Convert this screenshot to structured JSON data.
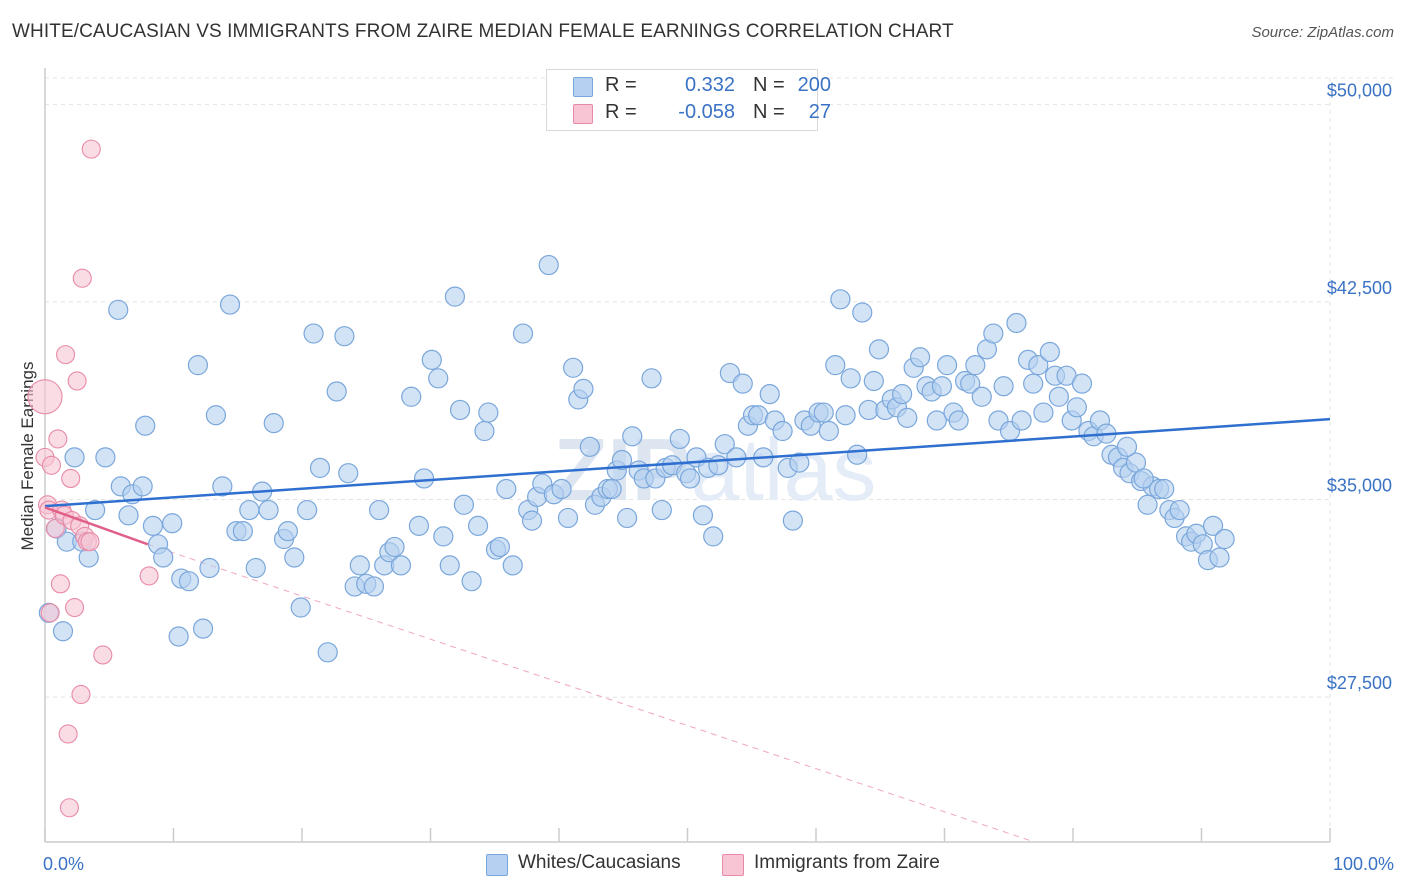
{
  "title": "WHITE/CAUCASIAN VS IMMIGRANTS FROM ZAIRE MEDIAN FEMALE EARNINGS CORRELATION CHART",
  "source": "Source: ZipAtlas.com",
  "watermark": {
    "zip": "ZIP",
    "atlas": "atlas"
  },
  "legend": {
    "r_label": "R =",
    "n_label": "N =",
    "blue": {
      "r": "0.332",
      "n": "200"
    },
    "pink": {
      "r": "-0.058",
      "n": "27"
    }
  },
  "bottom_legend": {
    "blue": "Whites/Caucasians",
    "pink": "Immigrants from Zaire"
  },
  "colors": {
    "blue_fill": "#b5d0f0",
    "blue_stroke": "#7aa7db",
    "blue_line": "#2f6fd0",
    "pink_fill": "#f7c5d3",
    "pink_stroke": "#e88aa6",
    "pink_line": "#e0608a",
    "axis_text": "#3a72c4"
  },
  "chart_data": {
    "type": "scatter",
    "title": "WHITE/CAUCASIAN VS IMMIGRANTS FROM ZAIRE MEDIAN FEMALE EARNINGS CORRELATION CHART",
    "xlabel": "",
    "ylabel": "Median Female Earnings",
    "xlim": [
      0,
      100
    ],
    "ylim": [
      22000,
      51000
    ],
    "x_tick_labels": {
      "left": "0.0%",
      "right": "100.0%"
    },
    "y_ticks": [
      {
        "value": 27500,
        "label": "$27,500"
      },
      {
        "value": 35000,
        "label": "$35,000"
      },
      {
        "value": 42500,
        "label": "$42,500"
      },
      {
        "value": 50000,
        "label": "$50,000"
      }
    ],
    "grid": true,
    "series": [
      {
        "name": "Whites/Caucasians",
        "color": "blue",
        "trend": {
          "x": [
            0,
            100
          ],
          "y": [
            34750,
            38050
          ]
        },
        "points": [
          [
            0.3,
            30.7
          ],
          [
            0.9,
            33.9
          ],
          [
            1.4,
            30.0
          ],
          [
            1.7,
            33.4
          ],
          [
            2.3,
            36.6
          ],
          [
            2.9,
            33.4
          ],
          [
            3.4,
            32.8
          ],
          [
            3.9,
            34.6
          ],
          [
            4.7,
            36.6
          ],
          [
            5.7,
            42.2
          ],
          [
            5.9,
            35.5
          ],
          [
            6.5,
            34.4
          ],
          [
            6.8,
            35.2
          ],
          [
            7.6,
            35.5
          ],
          [
            7.8,
            37.8
          ],
          [
            8.4,
            34.0
          ],
          [
            8.8,
            33.3
          ],
          [
            9.2,
            32.8
          ],
          [
            9.9,
            34.1
          ],
          [
            10.4,
            29.8
          ],
          [
            10.6,
            32.0
          ],
          [
            11.2,
            31.9
          ],
          [
            11.9,
            40.1
          ],
          [
            12.3,
            30.1
          ],
          [
            12.8,
            32.4
          ],
          [
            13.3,
            38.2
          ],
          [
            13.8,
            35.5
          ],
          [
            14.4,
            42.4
          ],
          [
            14.9,
            33.8
          ],
          [
            15.4,
            33.8
          ],
          [
            15.9,
            34.6
          ],
          [
            16.4,
            32.4
          ],
          [
            16.9,
            35.3
          ],
          [
            17.4,
            34.6
          ],
          [
            17.8,
            37.9
          ],
          [
            18.6,
            33.5
          ],
          [
            18.9,
            33.8
          ],
          [
            19.4,
            32.8
          ],
          [
            19.9,
            30.9
          ],
          [
            20.4,
            34.6
          ],
          [
            20.9,
            41.3
          ],
          [
            21.4,
            36.2
          ],
          [
            22.0,
            29.2
          ],
          [
            22.7,
            39.1
          ],
          [
            23.3,
            41.2
          ],
          [
            23.6,
            36.0
          ],
          [
            24.1,
            31.7
          ],
          [
            24.5,
            32.5
          ],
          [
            25.0,
            31.8
          ],
          [
            25.6,
            31.7
          ],
          [
            26.0,
            34.6
          ],
          [
            26.4,
            32.5
          ],
          [
            26.8,
            33.0
          ],
          [
            27.2,
            33.2
          ],
          [
            27.7,
            32.5
          ],
          [
            28.5,
            38.9
          ],
          [
            29.1,
            34.0
          ],
          [
            29.5,
            35.8
          ],
          [
            30.1,
            40.3
          ],
          [
            30.6,
            39.6
          ],
          [
            31.0,
            33.6
          ],
          [
            31.5,
            32.5
          ],
          [
            31.9,
            42.7
          ],
          [
            32.3,
            38.4
          ],
          [
            32.6,
            34.8
          ],
          [
            33.2,
            31.9
          ],
          [
            33.7,
            34.0
          ],
          [
            34.2,
            37.6
          ],
          [
            34.5,
            38.3
          ],
          [
            35.1,
            33.1
          ],
          [
            35.4,
            33.2
          ],
          [
            35.9,
            35.4
          ],
          [
            36.4,
            32.5
          ],
          [
            37.2,
            41.3
          ],
          [
            37.6,
            34.6
          ],
          [
            37.9,
            34.2
          ],
          [
            38.3,
            35.1
          ],
          [
            38.7,
            35.6
          ],
          [
            39.2,
            43.9
          ],
          [
            39.6,
            35.2
          ],
          [
            40.2,
            35.4
          ],
          [
            40.7,
            34.3
          ],
          [
            41.1,
            40.0
          ],
          [
            41.5,
            38.8
          ],
          [
            41.9,
            39.2
          ],
          [
            42.4,
            37.0
          ],
          [
            42.8,
            34.8
          ],
          [
            43.3,
            35.1
          ],
          [
            43.8,
            35.4
          ],
          [
            44.1,
            35.4
          ],
          [
            44.5,
            36.1
          ],
          [
            44.9,
            36.5
          ],
          [
            45.3,
            34.3
          ],
          [
            45.7,
            37.4
          ],
          [
            46.2,
            36.1
          ],
          [
            46.6,
            35.8
          ],
          [
            47.2,
            39.6
          ],
          [
            47.5,
            35.8
          ],
          [
            48.0,
            34.6
          ],
          [
            48.3,
            36.2
          ],
          [
            48.8,
            36.3
          ],
          [
            49.4,
            37.3
          ],
          [
            49.9,
            36.0
          ],
          [
            50.2,
            35.8
          ],
          [
            50.7,
            36.6
          ],
          [
            51.2,
            34.4
          ],
          [
            51.6,
            36.2
          ],
          [
            52.0,
            33.6
          ],
          [
            52.4,
            36.3
          ],
          [
            52.9,
            37.1
          ],
          [
            53.3,
            39.8
          ],
          [
            53.8,
            36.6
          ],
          [
            54.3,
            39.4
          ],
          [
            54.7,
            37.8
          ],
          [
            55.1,
            38.2
          ],
          [
            55.5,
            38.2
          ],
          [
            55.9,
            36.6
          ],
          [
            56.4,
            39.0
          ],
          [
            56.8,
            38.0
          ],
          [
            57.4,
            37.6
          ],
          [
            57.8,
            36.2
          ],
          [
            58.2,
            34.2
          ],
          [
            58.7,
            36.4
          ],
          [
            59.1,
            38.0
          ],
          [
            59.6,
            37.8
          ],
          [
            60.2,
            38.3
          ],
          [
            60.6,
            38.3
          ],
          [
            61.0,
            37.6
          ],
          [
            61.5,
            40.1
          ],
          [
            61.9,
            42.6
          ],
          [
            62.3,
            38.2
          ],
          [
            62.7,
            39.6
          ],
          [
            63.2,
            36.7
          ],
          [
            63.6,
            42.1
          ],
          [
            64.1,
            38.4
          ],
          [
            64.5,
            39.5
          ],
          [
            64.9,
            40.7
          ],
          [
            65.4,
            38.4
          ],
          [
            65.9,
            38.8
          ],
          [
            66.3,
            38.5
          ],
          [
            66.7,
            39.0
          ],
          [
            67.1,
            38.1
          ],
          [
            67.6,
            40.0
          ],
          [
            68.1,
            40.4
          ],
          [
            68.6,
            39.3
          ],
          [
            69.0,
            39.1
          ],
          [
            69.4,
            38.0
          ],
          [
            69.8,
            39.3
          ],
          [
            70.2,
            40.1
          ],
          [
            70.7,
            38.3
          ],
          [
            71.1,
            38.0
          ],
          [
            71.6,
            39.5
          ],
          [
            72.0,
            39.4
          ],
          [
            72.4,
            40.1
          ],
          [
            72.9,
            38.9
          ],
          [
            73.3,
            40.7
          ],
          [
            73.8,
            41.3
          ],
          [
            74.2,
            38.0
          ],
          [
            74.6,
            39.3
          ],
          [
            75.1,
            37.6
          ],
          [
            75.6,
            41.7
          ],
          [
            76.0,
            38.0
          ],
          [
            76.5,
            40.3
          ],
          [
            76.9,
            39.4
          ],
          [
            77.3,
            40.1
          ],
          [
            77.7,
            38.3
          ],
          [
            78.2,
            40.6
          ],
          [
            78.6,
            39.7
          ],
          [
            78.9,
            38.9
          ],
          [
            79.5,
            39.7
          ],
          [
            79.9,
            38.0
          ],
          [
            80.3,
            38.5
          ],
          [
            80.7,
            39.4
          ],
          [
            81.2,
            37.6
          ],
          [
            81.6,
            37.4
          ],
          [
            82.1,
            38.0
          ],
          [
            82.6,
            37.5
          ],
          [
            83.0,
            36.7
          ],
          [
            83.5,
            36.6
          ],
          [
            83.9,
            36.2
          ],
          [
            84.4,
            36.0
          ],
          [
            84.9,
            36.4
          ],
          [
            85.3,
            35.7
          ],
          [
            85.8,
            34.8
          ],
          [
            86.2,
            35.5
          ],
          [
            86.7,
            35.4
          ],
          [
            87.1,
            35.4
          ],
          [
            87.5,
            34.6
          ],
          [
            87.9,
            34.3
          ],
          [
            88.3,
            34.6
          ],
          [
            88.8,
            33.6
          ],
          [
            89.2,
            33.4
          ],
          [
            89.6,
            33.7
          ],
          [
            90.1,
            33.3
          ],
          [
            90.5,
            32.7
          ],
          [
            90.9,
            34.0
          ],
          [
            91.4,
            32.8
          ],
          [
            91.8,
            33.5
          ],
          [
            85.5,
            35.8
          ],
          [
            84.2,
            37.0
          ]
        ]
      },
      {
        "name": "Immigrants from Zaire",
        "color": "pink",
        "trend": {
          "x": [
            0,
            8.0
          ],
          "y": [
            34700,
            33300
          ]
        },
        "trend_extended": {
          "x": [
            8.0,
            77.0
          ],
          "y": [
            33300,
            22000
          ]
        },
        "points": [
          [
            0.0,
            38.9
          ],
          [
            0.0,
            36.6
          ],
          [
            0.2,
            34.8
          ],
          [
            0.3,
            34.6
          ],
          [
            0.4,
            30.7
          ],
          [
            0.5,
            36.3
          ],
          [
            0.8,
            33.9
          ],
          [
            1.0,
            37.3
          ],
          [
            1.2,
            31.8
          ],
          [
            1.3,
            34.6
          ],
          [
            1.5,
            34.4
          ],
          [
            1.6,
            40.5
          ],
          [
            1.8,
            26.1
          ],
          [
            1.9,
            23.3
          ],
          [
            2.0,
            35.8
          ],
          [
            2.1,
            34.2
          ],
          [
            2.3,
            30.9
          ],
          [
            2.5,
            39.5
          ],
          [
            2.7,
            34.0
          ],
          [
            2.8,
            27.6
          ],
          [
            2.9,
            43.4
          ],
          [
            3.1,
            33.6
          ],
          [
            3.3,
            33.4
          ],
          [
            3.5,
            33.4
          ],
          [
            3.6,
            48.3
          ],
          [
            4.5,
            29.1
          ],
          [
            8.1,
            32.1
          ]
        ],
        "sizes": [
          18,
          10,
          10,
          10,
          10,
          10,
          10,
          10,
          10,
          10,
          10,
          10,
          10,
          10,
          10,
          10,
          10,
          10,
          10,
          10,
          10,
          10,
          10,
          10,
          10,
          10,
          10
        ]
      }
    ]
  }
}
